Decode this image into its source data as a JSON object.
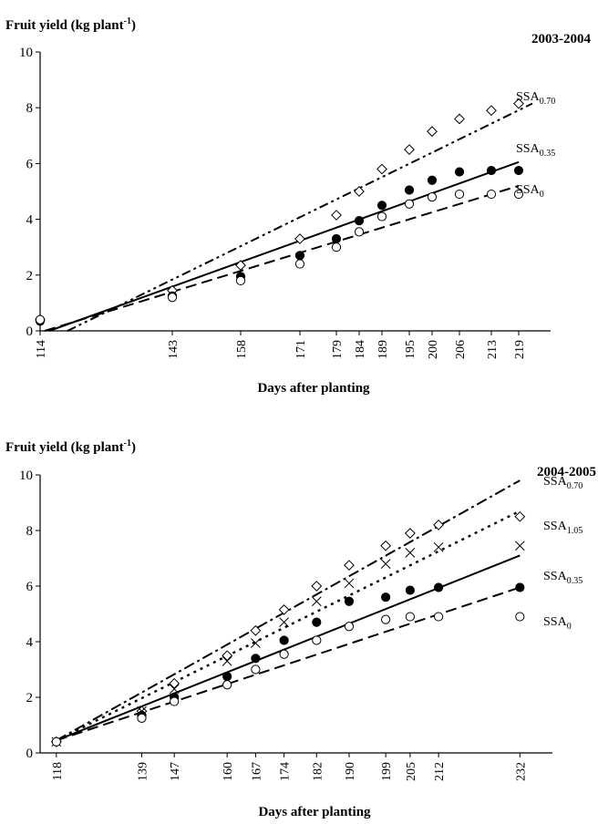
{
  "chart_data": [
    {
      "type": "scatter",
      "title": "2003-2004",
      "ylabel": "Fruit yield (kg plant",
      "ylabel_sup": "-1",
      "ylabel_end": ")",
      "xlabel": "Days after planting",
      "ylim": [
        0,
        10
      ],
      "yticks": [
        "0",
        "2",
        "4",
        "6",
        "8",
        "10"
      ],
      "xlim": [
        114,
        226
      ],
      "x": [
        114,
        143,
        158,
        171,
        179,
        184,
        189,
        195,
        200,
        206,
        213,
        219
      ],
      "xtick_labels": [
        "114",
        "143",
        "158",
        "171",
        "179",
        "184",
        "189",
        "195",
        "200",
        "206",
        "213",
        "219"
      ],
      "series": [
        {
          "name": "SSA0.70",
          "label_main": "SSA",
          "label_sub": "0.70",
          "marker": "diamond",
          "line": "dash-dot-dot",
          "values": [
            0.4,
            1.45,
            2.35,
            3.3,
            4.15,
            5.0,
            5.8,
            6.5,
            7.15,
            7.6,
            7.9,
            8.15
          ],
          "fit": [
            [
              120,
              0.0
            ],
            [
              222,
              8.15
            ]
          ]
        },
        {
          "name": "SSA0.35",
          "label_main": "SSA",
          "label_sub": "0.35",
          "marker": "filled-circle",
          "line": "solid",
          "values": [
            0.35,
            1.25,
            1.95,
            2.7,
            3.3,
            3.95,
            4.5,
            5.05,
            5.4,
            5.7,
            5.75,
            5.75
          ],
          "fit": [
            [
              116,
              0.0
            ],
            [
              219,
              6.05
            ]
          ]
        },
        {
          "name": "SSA0",
          "label_main": "SSA",
          "label_sub": "0",
          "marker": "open-circle",
          "line": "dashed",
          "values": [
            0.4,
            1.2,
            1.8,
            2.4,
            3.0,
            3.55,
            4.1,
            4.55,
            4.8,
            4.9,
            4.9,
            4.9
          ],
          "fit": [
            [
              115,
              0.0
            ],
            [
              219,
              5.2
            ]
          ]
        }
      ]
    },
    {
      "type": "scatter",
      "title": "2004-2005",
      "ylabel": "Fruit yield (kg plant",
      "ylabel_sup": "-1",
      "ylabel_end": ")",
      "xlabel": "Days after planting",
      "ylim": [
        0,
        10
      ],
      "yticks": [
        "0",
        "2",
        "4",
        "6",
        "8",
        "10"
      ],
      "xlim": [
        114,
        240
      ],
      "x": [
        118,
        139,
        147,
        160,
        167,
        174,
        182,
        190,
        199,
        205,
        212,
        232
      ],
      "xtick_labels": [
        "118",
        "139",
        "147",
        "160",
        "167",
        "174",
        "182",
        "190",
        "199",
        "205",
        "212",
        "232"
      ],
      "series": [
        {
          "name": "SSA0.70",
          "label_main": "SSA",
          "label_sub": "0.70",
          "marker": "diamond",
          "line": "dash-dot",
          "values": [
            0.4,
            1.5,
            2.5,
            3.5,
            4.4,
            5.15,
            6.0,
            6.75,
            7.45,
            7.9,
            8.2,
            8.5
          ],
          "fit": [
            [
              118,
              0.45
            ],
            [
              232,
              9.8
            ]
          ]
        },
        {
          "name": "SSA1.05",
          "label_main": "SSA",
          "label_sub": "1.05",
          "marker": "none",
          "line": "dotted",
          "values": [],
          "fit": [
            [
              118,
              0.45
            ],
            [
              232,
              8.7
            ]
          ]
        },
        {
          "name": "SSA0.35",
          "label_main": "SSA",
          "label_sub": "0.35",
          "marker": "cross",
          "line": "none",
          "values": [
            0.4,
            1.5,
            2.3,
            3.3,
            3.95,
            4.7,
            5.45,
            6.1,
            6.8,
            7.2,
            7.4,
            7.45
          ],
          "fit": null
        },
        {
          "name": "SSA0",
          "label_main": "SSA",
          "label_sub": "0",
          "marker": "filled-circle",
          "line": "solid",
          "values": [
            0.4,
            1.35,
            2.0,
            2.75,
            3.4,
            4.05,
            4.7,
            5.45,
            5.6,
            5.85,
            5.95,
            5.95
          ],
          "fit": [
            [
              118,
              0.45
            ],
            [
              232,
              7.1
            ]
          ]
        },
        {
          "name": "",
          "label_main": "",
          "label_sub": "",
          "marker": "open-circle",
          "line": "dashed",
          "values": [
            0.4,
            1.25,
            1.85,
            2.45,
            3.0,
            3.55,
            4.05,
            4.55,
            4.8,
            4.9,
            4.9,
            4.9
          ],
          "fit": [
            [
              118,
              0.45
            ],
            [
              232,
              5.95
            ]
          ]
        }
      ]
    }
  ]
}
